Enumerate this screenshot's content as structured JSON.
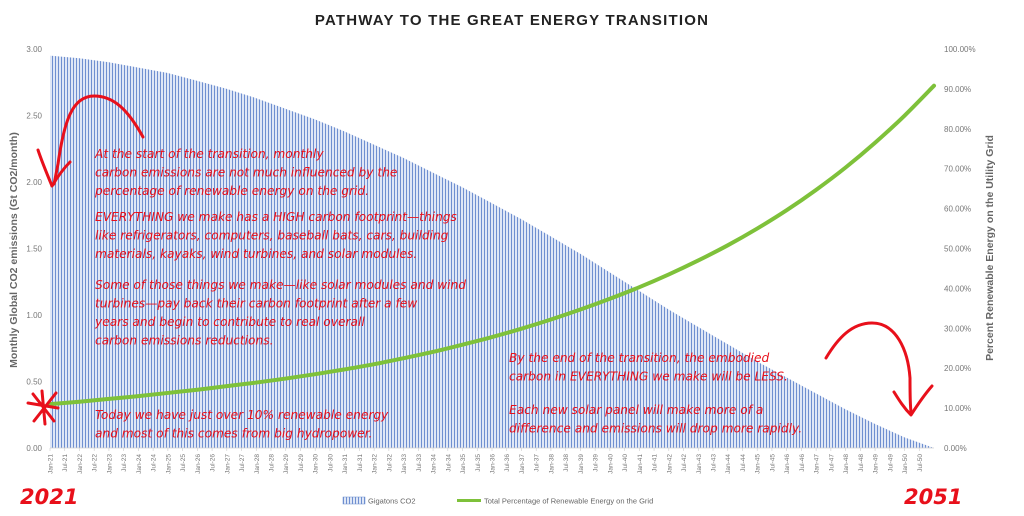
{
  "chart_data": {
    "type": "area",
    "title": "PATHWAY TO THE GREAT ENERGY TRANSITION",
    "ylabel_left": "Monthly Global CO2 emissions (Gt CO2/month)",
    "ylabel_right": "Percent Renewable Energy on the Utility Grid",
    "ylim_left": [
      0,
      3.0
    ],
    "ylim_right": [
      0,
      100
    ],
    "y_ticks_left": [
      "0.00",
      "0.50",
      "1.00",
      "1.50",
      "2.00",
      "2.50",
      "3.00"
    ],
    "y_ticks_right": [
      "0.00%",
      "10.00%",
      "20.00%",
      "30.00%",
      "40.00%",
      "50.00%",
      "60.00%",
      "70.00%",
      "80.00%",
      "90.00%",
      "100.00%"
    ],
    "x_tick_labels": [
      "Jan-21",
      "Jul-21",
      "Jan-22",
      "Jul-22",
      "Jan-23",
      "Jul-23",
      "Jan-24",
      "Jul-24",
      "Jan-25",
      "Jul-25",
      "Jan-26",
      "Jul-26",
      "Jan-27",
      "Jul-27",
      "Jan-28",
      "Jul-28",
      "Jan-29",
      "Jul-29",
      "Jan-30",
      "Jul-30",
      "Jan-31",
      "Jul-31",
      "Jan-32",
      "Jul-32",
      "Jan-33",
      "Jul-33",
      "Jan-34",
      "Jul-34",
      "Jan-35",
      "Jul-35",
      "Jan-36",
      "Jul-36",
      "Jan-37",
      "Jul-37",
      "Jan-38",
      "Jul-38",
      "Jan-39",
      "Jul-39",
      "Jan-40",
      "Jul-40",
      "Jan-41",
      "Jul-41",
      "Jan-42",
      "Jul-42",
      "Jan-43",
      "Jul-43",
      "Jan-44",
      "Jul-44",
      "Jan-45",
      "Jul-45",
      "Jan-46",
      "Jul-46",
      "Jan-47",
      "Jul-47",
      "Jan-48",
      "Jul-48",
      "Jan-49",
      "Jul-49",
      "Jan-50",
      "Jul-50"
    ],
    "series": [
      {
        "name": "Gigatons CO2",
        "axis": "left",
        "kind": "area",
        "color": "#6f8fd0",
        "x": [
          "Jan-21",
          "Jan-22",
          "Jan-23",
          "Jan-24",
          "Jan-25",
          "Jan-26",
          "Jan-27",
          "Jan-28",
          "Jan-29",
          "Jan-30",
          "Jan-31",
          "Jan-32",
          "Jan-33",
          "Jan-34",
          "Jan-35",
          "Jan-36",
          "Jan-37",
          "Jan-38",
          "Jan-39",
          "Jan-40",
          "Jan-41",
          "Jan-42",
          "Jan-43",
          "Jan-44",
          "Jan-45",
          "Jan-46",
          "Jan-47",
          "Jan-48",
          "Jan-49",
          "Jan-50",
          "Jan-51"
        ],
        "values": [
          2.95,
          2.93,
          2.9,
          2.86,
          2.82,
          2.76,
          2.7,
          2.63,
          2.55,
          2.47,
          2.38,
          2.28,
          2.18,
          2.07,
          1.96,
          1.84,
          1.72,
          1.59,
          1.46,
          1.32,
          1.18,
          1.04,
          0.91,
          0.78,
          0.65,
          0.53,
          0.41,
          0.29,
          0.18,
          0.08,
          0.0
        ]
      },
      {
        "name": "Total Percentage of Renewable Energy on the Grid",
        "axis": "right",
        "kind": "line",
        "color": "#7ec13a",
        "x": [
          "Jan-21",
          "Jan-22",
          "Jan-23",
          "Jan-24",
          "Jan-25",
          "Jan-26",
          "Jan-27",
          "Jan-28",
          "Jan-29",
          "Jan-30",
          "Jan-31",
          "Jan-32",
          "Jan-33",
          "Jan-34",
          "Jan-35",
          "Jan-36",
          "Jan-37",
          "Jan-38",
          "Jan-39",
          "Jan-40",
          "Jan-41",
          "Jan-42",
          "Jan-43",
          "Jan-44",
          "Jan-45",
          "Jan-46",
          "Jan-47",
          "Jan-48",
          "Jan-49",
          "Jan-50",
          "Jan-51"
        ],
        "values": [
          11.0,
          11.6,
          12.3,
          13.0,
          13.8,
          14.6,
          15.5,
          16.4,
          17.4,
          18.5,
          19.7,
          21.0,
          22.5,
          24.1,
          25.9,
          27.8,
          29.9,
          32.2,
          34.7,
          37.4,
          40.3,
          43.5,
          47.0,
          50.8,
          55.0,
          59.6,
          64.7,
          70.3,
          76.5,
          83.3,
          90.8
        ]
      }
    ],
    "legend_position": "bottom",
    "grid": false
  },
  "annotations": {
    "start_note": [
      "At the start of the transition, monthly",
      "carbon emissions are not much influenced by the",
      "percentage of renewable energy on the grid."
    ],
    "everything_note": [
      "EVERYTHING we make has a HIGH carbon footprint—things",
      "like refrigerators, computers, baseball bats, cars, building",
      "materials, kayaks, wind turbines, and solar modules."
    ],
    "payback_note": [
      "Some of those things we make—like solar modules and wind",
      "turbines—pay back their carbon footprint after a few",
      "years and begin to contribute to real overall",
      "carbon emissions reductions."
    ],
    "today_note": [
      "Today we have just over 10% renewable energy",
      "and most of this comes from big hydropower."
    ],
    "end_note": [
      "By the end of the transition, the embodied",
      "carbon in EVERYTHING we make will be LESS."
    ],
    "solar_note": [
      "Each new solar panel will make more of a",
      "difference and emissions will drop more rapidly."
    ],
    "year_start": "2021",
    "year_end": "2051"
  },
  "colors": {
    "annotation": "#e8101b",
    "area": "#6f8fd0",
    "line": "#7ec13a"
  }
}
